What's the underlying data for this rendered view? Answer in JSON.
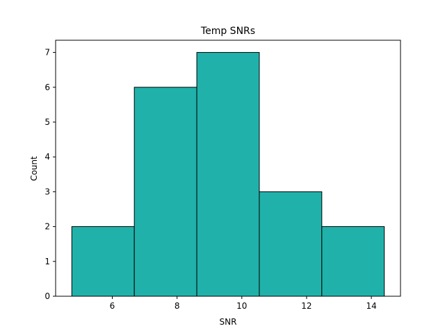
{
  "chart_data": {
    "type": "bar",
    "title": "Temp SNRs",
    "xlabel": "SNR",
    "ylabel": "Count",
    "bin_edges": [
      4.75,
      6.68,
      8.61,
      10.54,
      12.47,
      14.4
    ],
    "values": [
      2,
      6,
      7,
      3,
      2
    ],
    "xlim": [
      4.25,
      14.9
    ],
    "ylim": [
      0,
      7.35
    ],
    "xticks": [
      6,
      8,
      10,
      12,
      14
    ],
    "yticks": [
      0,
      1,
      2,
      3,
      4,
      5,
      6,
      7
    ],
    "bar_color": "#20b2aa",
    "edge_color": "#000000",
    "grid": false
  }
}
